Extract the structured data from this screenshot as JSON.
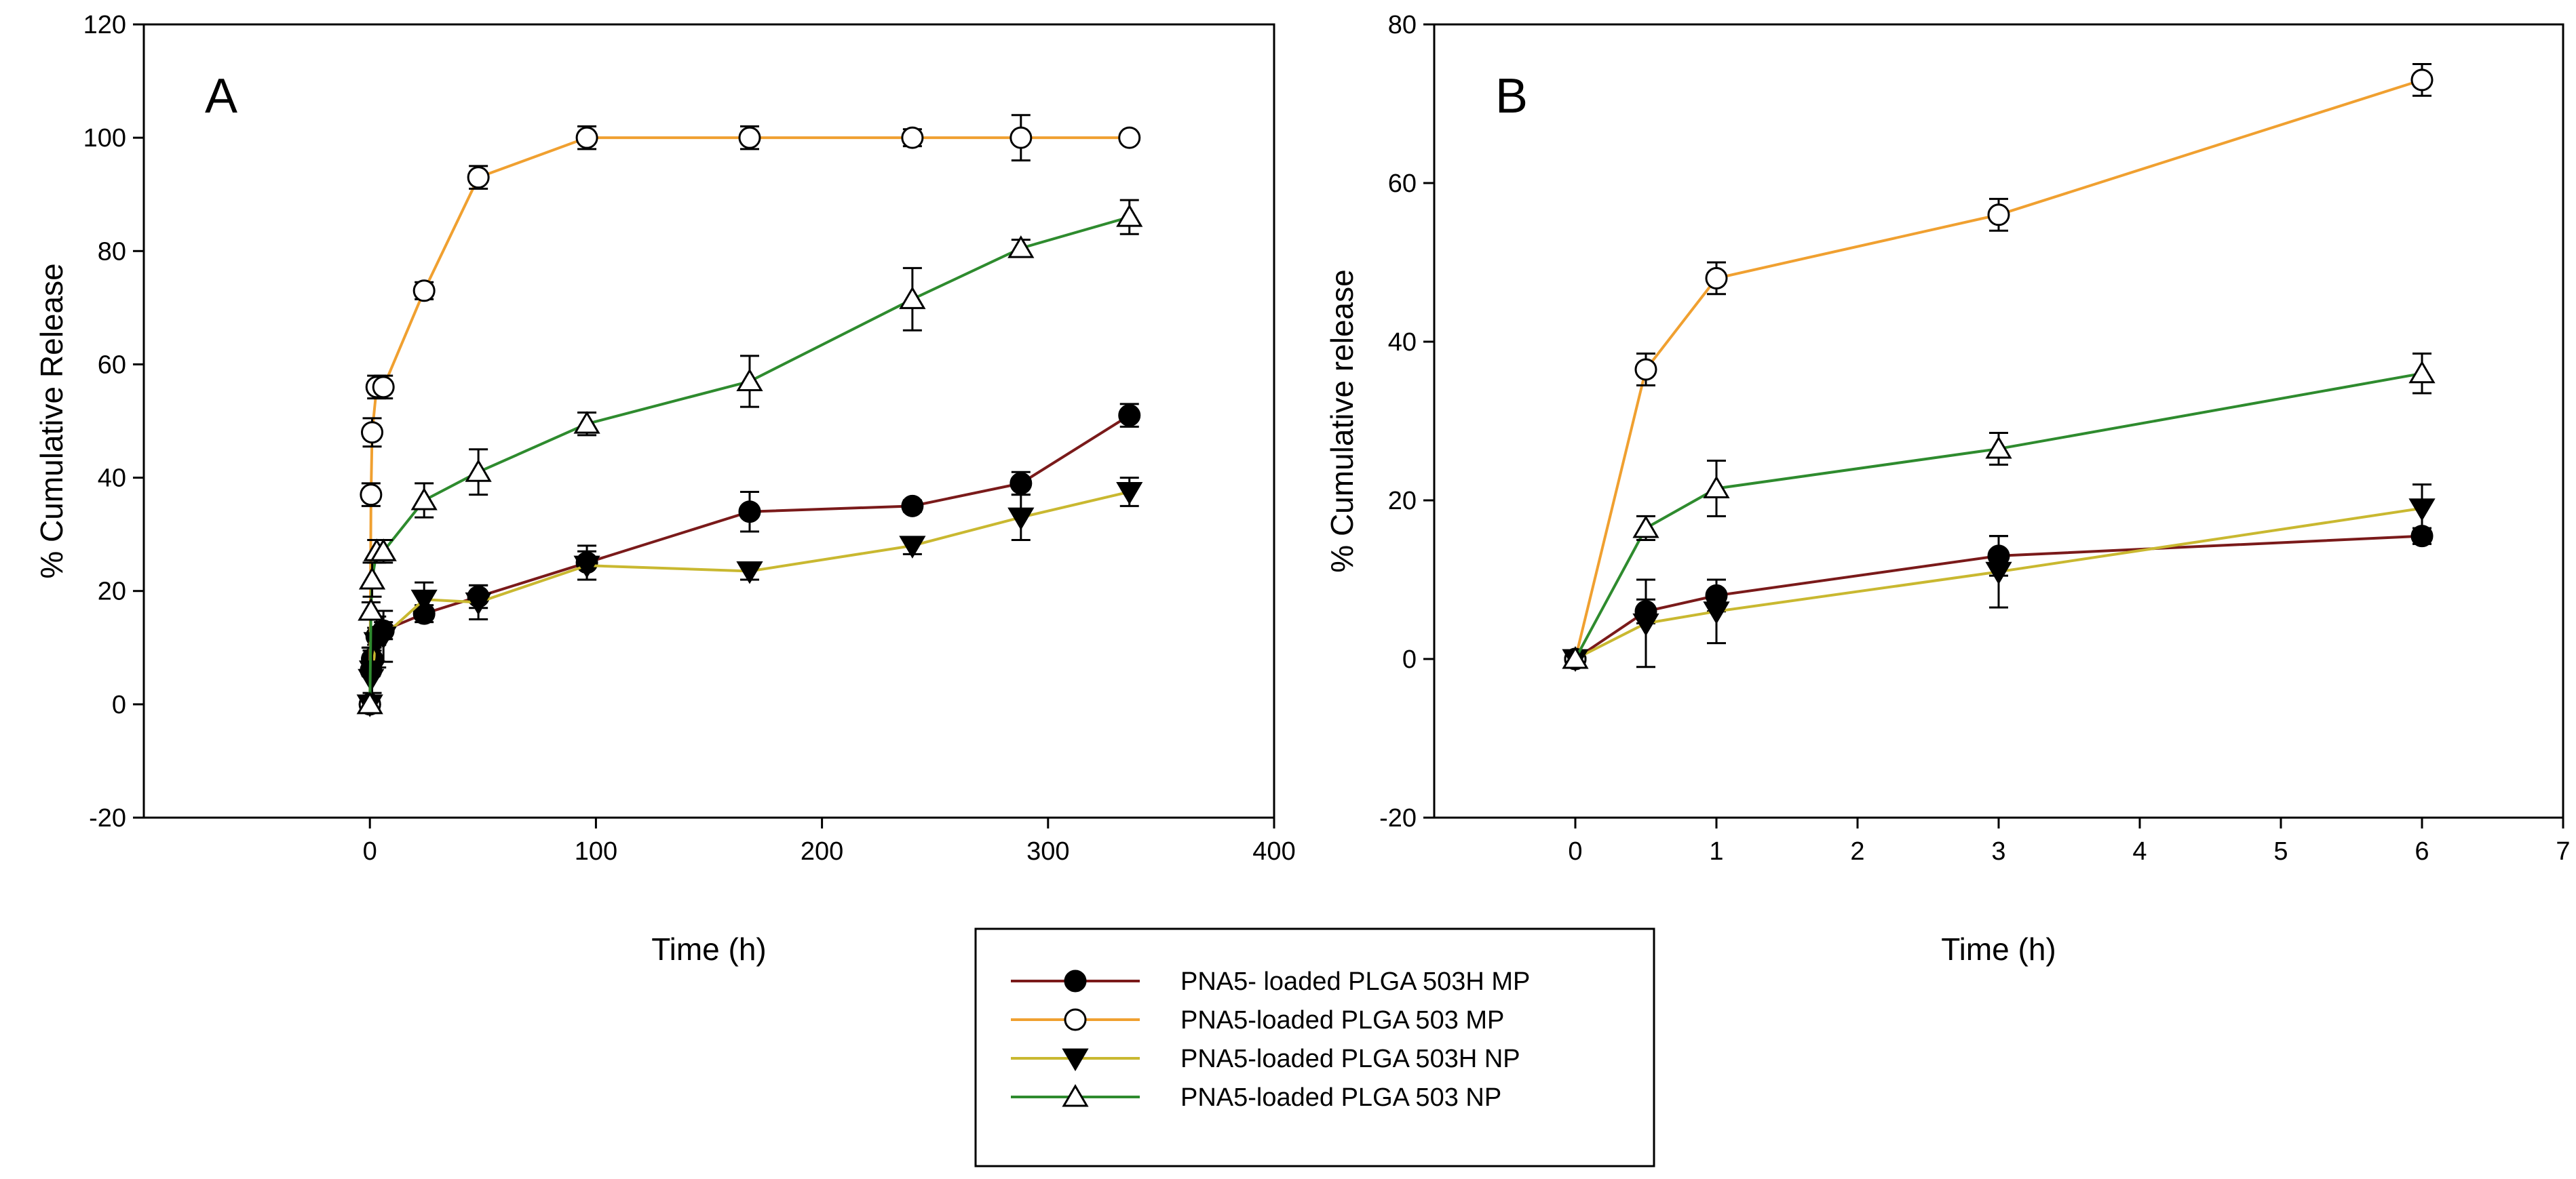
{
  "legend": [
    {
      "label": "PNA5- loaded PLGA 503H MP",
      "series": "503H_MP"
    },
    {
      "label": "PNA5-loaded PLGA 503 MP",
      "series": "503_MP"
    },
    {
      "label": "PNA5-loaded PLGA 503H NP",
      "series": "503H_NP"
    },
    {
      "label": "PNA5-loaded PLGA 503 NP",
      "series": "503_NP"
    }
  ],
  "series_style": {
    "503H_MP": {
      "color": "#7a1a1a",
      "marker": "circle",
      "fill": "#000000"
    },
    "503_MP": {
      "color": "#f0a030",
      "marker": "circle",
      "fill": "#ffffff"
    },
    "503H_NP": {
      "color": "#c9b830",
      "marker": "triangle-down",
      "fill": "#000000"
    },
    "503_NP": {
      "color": "#2e8b2e",
      "marker": "triangle-up",
      "fill": "#ffffff"
    }
  },
  "chart_data": [
    {
      "type": "line",
      "panel": "A",
      "xlabel": "Time (h)",
      "ylabel": "% Cumulative Release",
      "xlim": [
        -100,
        400
      ],
      "ylim": [
        -20,
        120
      ],
      "xticks": [
        0,
        100,
        200,
        300,
        400
      ],
      "yticks": [
        -20,
        0,
        20,
        40,
        60,
        80,
        100,
        120
      ],
      "series": [
        {
          "key": "503H_MP",
          "name": "PNA5- loaded PLGA 503H MP",
          "x": [
            0,
            0.5,
            1,
            3,
            6,
            24,
            48,
            96,
            168,
            240,
            288,
            336
          ],
          "y": [
            0,
            6,
            8,
            12,
            13,
            16,
            19,
            25,
            34,
            35,
            39,
            51
          ],
          "err": [
            0.5,
            1,
            1.5,
            1.5,
            1.5,
            1.5,
            2,
            3,
            3.5,
            1,
            2,
            2
          ]
        },
        {
          "key": "503_MP",
          "name": "PNA5-loaded PLGA 503 MP",
          "x": [
            0,
            0.5,
            1,
            3,
            6,
            24,
            48,
            96,
            168,
            240,
            288,
            336
          ],
          "y": [
            0,
            37,
            48,
            56,
            56,
            73,
            93,
            100,
            100,
            100,
            100,
            100
          ],
          "err": [
            0.5,
            2,
            2.5,
            2,
            2,
            1.5,
            2,
            2,
            2,
            1.5,
            4,
            0.5
          ]
        },
        {
          "key": "503H_NP",
          "name": "PNA5-loaded PLGA 503H NP",
          "x": [
            0,
            0.5,
            1,
            3,
            6,
            24,
            48,
            96,
            168,
            240,
            288,
            336
          ],
          "y": [
            0,
            4.5,
            6,
            11,
            12,
            18.5,
            18,
            24.5,
            23.5,
            28,
            33,
            37.5
          ],
          "err": [
            0.5,
            5.5,
            4,
            4.5,
            4.5,
            3,
            3,
            2.5,
            1.5,
            1.5,
            4,
            2.5
          ]
        },
        {
          "key": "503_NP",
          "name": "PNA5-loaded PLGA 503 NP",
          "x": [
            0,
            0.5,
            1,
            3,
            6,
            24,
            48,
            96,
            168,
            240,
            288,
            336
          ],
          "y": [
            0,
            16.5,
            22,
            27,
            27,
            36,
            41,
            49.5,
            57,
            71.5,
            80.5,
            86
          ],
          "err": [
            0.5,
            1.5,
            3,
            2,
            2,
            3,
            4,
            2,
            4.5,
            5.5,
            1.5,
            3
          ]
        }
      ]
    },
    {
      "type": "line",
      "panel": "B",
      "xlabel": "Time (h)",
      "ylabel": "% Cumulative release",
      "xlim": [
        -1,
        7
      ],
      "ylim": [
        -20,
        80
      ],
      "xticks": [
        0,
        1,
        2,
        3,
        4,
        5,
        6,
        7
      ],
      "yticks": [
        -20,
        0,
        20,
        40,
        60,
        80
      ],
      "series": [
        {
          "key": "503H_MP",
          "name": "PNA5- loaded PLGA 503H MP",
          "x": [
            0,
            0.5,
            1,
            3,
            6
          ],
          "y": [
            0,
            6,
            8,
            13,
            15.5
          ],
          "err": [
            0.5,
            1.5,
            2,
            2.5,
            1
          ]
        },
        {
          "key": "503_MP",
          "name": "PNA5-loaded PLGA 503 MP",
          "x": [
            0,
            0.5,
            1,
            3,
            6
          ],
          "y": [
            0,
            36.5,
            48,
            56,
            73
          ],
          "err": [
            0.5,
            2,
            2,
            2,
            2
          ]
        },
        {
          "key": "503H_NP",
          "name": "PNA5-loaded PLGA 503H NP",
          "x": [
            0,
            0.5,
            1,
            3,
            6
          ],
          "y": [
            0,
            4.5,
            6,
            11,
            19
          ],
          "err": [
            0.5,
            5.5,
            4,
            4.5,
            3
          ]
        },
        {
          "key": "503_NP",
          "name": "PNA5-loaded PLGA 503 NP",
          "x": [
            0,
            0.5,
            1,
            3,
            6
          ],
          "y": [
            0,
            16.5,
            21.5,
            26.5,
            36
          ],
          "err": [
            0.5,
            1.5,
            3.5,
            2,
            2.5
          ]
        }
      ]
    }
  ]
}
